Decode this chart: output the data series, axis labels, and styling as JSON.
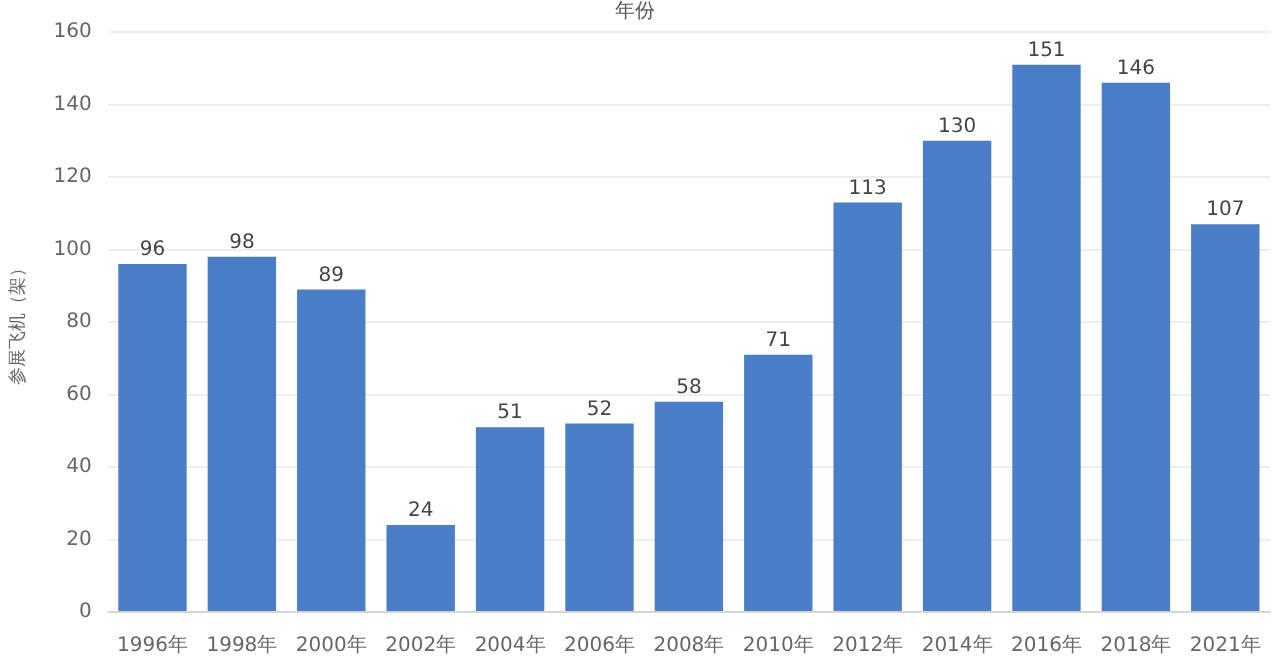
{
  "chart_data": {
    "type": "bar",
    "xlabel": "年份",
    "ylabel": "参展飞机（架）",
    "categories": [
      "1996年",
      "1998年",
      "2000年",
      "2002年",
      "2004年",
      "2006年",
      "2008年",
      "2010年",
      "2012年",
      "2014年",
      "2016年",
      "2018年",
      "2021年"
    ],
    "values": [
      96,
      98,
      89,
      24,
      51,
      52,
      58,
      71,
      113,
      130,
      151,
      146,
      107
    ],
    "color": "#4a7ec6",
    "ylim": [
      0,
      160
    ],
    "yticks": [
      0,
      20,
      40,
      60,
      80,
      100,
      120,
      140,
      160
    ],
    "grid": "y",
    "data_labels": true,
    "legend": false
  }
}
